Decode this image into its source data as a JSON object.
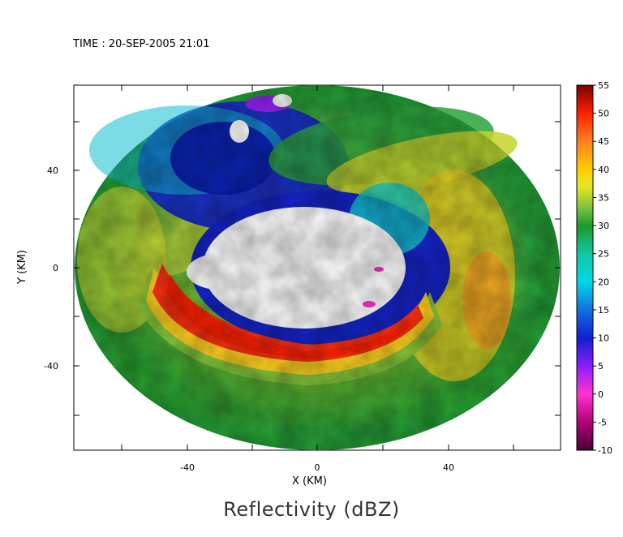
{
  "chart_data": {
    "type": "heatmap",
    "title": "Reflectivity (dBZ)",
    "timestamp": "TIME : 20-SEP-2005 21:01",
    "xlabel": "X (KM)",
    "ylabel": "Y (KM)",
    "xlim": [
      -75,
      75
    ],
    "ylim": [
      -56,
      56
    ],
    "x_ticks": [
      -40,
      0,
      40
    ],
    "y_ticks": [
      -40,
      0,
      40
    ],
    "grid": false,
    "colorbar": {
      "label_values": [
        55,
        50,
        45,
        40,
        35,
        30,
        25,
        20,
        15,
        10,
        5,
        0,
        -5,
        -10
      ],
      "range": [
        -10,
        55
      ],
      "stops": [
        {
          "value": -10,
          "color": "#4a0030"
        },
        {
          "value": -5,
          "color": "#b0007a"
        },
        {
          "value": 0,
          "color": "#ff33cc"
        },
        {
          "value": 5,
          "color": "#8a1cff"
        },
        {
          "value": 10,
          "color": "#1020d0"
        },
        {
          "value": 15,
          "color": "#1470e0"
        },
        {
          "value": 20,
          "color": "#00d8e8"
        },
        {
          "value": 25,
          "color": "#10c8a0"
        },
        {
          "value": 30,
          "color": "#1a9a2a"
        },
        {
          "value": 33,
          "color": "#78c040"
        },
        {
          "value": 37,
          "color": "#e8e820"
        },
        {
          "value": 40,
          "color": "#ffcc00"
        },
        {
          "value": 45,
          "color": "#ff8020"
        },
        {
          "value": 50,
          "color": "#ff2000"
        },
        {
          "value": 55,
          "color": "#7a0000"
        }
      ]
    },
    "data_extent": {
      "center": [
        0,
        0
      ],
      "x_radius_km": 73,
      "y_radius_km": 55
    },
    "features": [
      {
        "name": "eye",
        "value": null,
        "center": [
          -4,
          0
        ],
        "rx": 30,
        "ry": 17
      },
      {
        "name": "eyewall-rainband",
        "value": 48,
        "center": [
          -4,
          -14
        ],
        "rx": 46,
        "ry": 28
      },
      {
        "name": "northern-weak-echo",
        "value": 12,
        "center": [
          -22,
          28
        ],
        "rx": 28,
        "ry": 16
      }
    ]
  }
}
